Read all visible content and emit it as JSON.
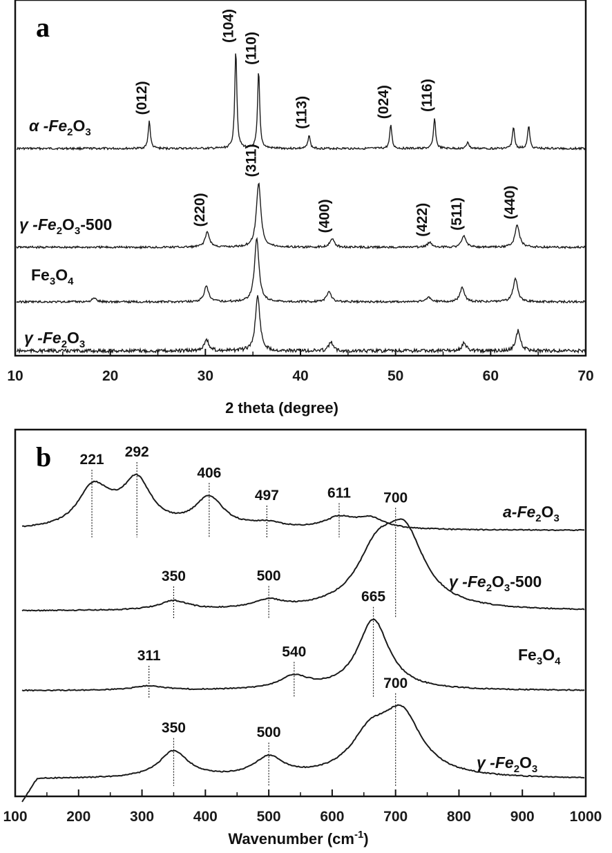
{
  "chart_data": [
    {
      "type": "line",
      "panel_label": "a",
      "xlabel": "2 theta (degree)",
      "ylabel": "",
      "xlim": [
        10,
        70
      ],
      "xticks": [
        10,
        20,
        30,
        40,
        50,
        60,
        70
      ],
      "yticks_shown": false,
      "grid": false,
      "line_color": "#1a1a1a",
      "series": [
        {
          "label_parts": [
            "α -Fe",
            "2",
            "O",
            "3"
          ],
          "peaks": [
            {
              "x": 24.1,
              "h": 0.28
            },
            {
              "x": 33.2,
              "h": 1.0
            },
            {
              "x": 35.6,
              "h": 0.78
            },
            {
              "x": 40.9,
              "h": 0.14
            },
            {
              "x": 49.5,
              "h": 0.24
            },
            {
              "x": 54.1,
              "h": 0.31
            },
            {
              "x": 57.6,
              "h": 0.07
            },
            {
              "x": 62.4,
              "h": 0.22
            },
            {
              "x": 64.0,
              "h": 0.23
            }
          ],
          "annotations": [
            {
              "x": 24.1,
              "label": "(012)"
            },
            {
              "x": 33.2,
              "label": "(104)"
            },
            {
              "x": 35.6,
              "label": "(110)"
            },
            {
              "x": 40.9,
              "label": "(113)"
            },
            {
              "x": 49.5,
              "label": "(024)"
            },
            {
              "x": 54.1,
              "label": "(116)"
            }
          ]
        },
        {
          "label_parts": [
            "γ -Fe",
            "2",
            "O",
            "3",
            "-500"
          ],
          "peaks": [
            {
              "x": 30.2,
              "h": 0.12
            },
            {
              "x": 35.6,
              "h": 0.52
            },
            {
              "x": 43.3,
              "h": 0.07
            },
            {
              "x": 53.6,
              "h": 0.04
            },
            {
              "x": 57.2,
              "h": 0.09
            },
            {
              "x": 62.8,
              "h": 0.18
            }
          ],
          "annotations": [
            {
              "x": 30.2,
              "label": "(220)"
            },
            {
              "x": 35.6,
              "label": "(311)"
            },
            {
              "x": 43.3,
              "label": "(400)"
            },
            {
              "x": 53.6,
              "label": "(422)"
            },
            {
              "x": 57.2,
              "label": "(511)"
            },
            {
              "x": 62.8,
              "label": "(440)"
            }
          ]
        },
        {
          "label_parts": [
            "Fe",
            "3",
            "O",
            "4"
          ],
          "peaks": [
            {
              "x": 18.3,
              "h": 0.03
            },
            {
              "x": 30.1,
              "h": 0.13
            },
            {
              "x": 35.4,
              "h": 0.54
            },
            {
              "x": 43.0,
              "h": 0.09
            },
            {
              "x": 53.5,
              "h": 0.04
            },
            {
              "x": 57.0,
              "h": 0.12
            },
            {
              "x": 62.6,
              "h": 0.2
            }
          ],
          "annotations": []
        },
        {
          "label_parts": [
            "γ -Fe",
            "2",
            "O",
            "3"
          ],
          "peaks": [
            {
              "x": 30.1,
              "h": 0.11
            },
            {
              "x": 35.5,
              "h": 0.52
            },
            {
              "x": 43.2,
              "h": 0.08
            },
            {
              "x": 57.2,
              "h": 0.07
            },
            {
              "x": 62.9,
              "h": 0.19
            }
          ],
          "annotations": []
        }
      ]
    },
    {
      "type": "line",
      "panel_label": "b",
      "xlabel_parts": [
        "Wavenumber (cm",
        "-1",
        ")"
      ],
      "ylabel": "",
      "xlim": [
        100,
        1000
      ],
      "xticks": [
        100,
        200,
        300,
        400,
        500,
        600,
        700,
        800,
        900,
        1000
      ],
      "yticks_shown": false,
      "grid": false,
      "line_color": "#1a1a1a",
      "series": [
        {
          "label_parts": [
            "a-Fe",
            "2",
            "O",
            "3"
          ],
          "bands": [
            {
              "x": 221,
              "h": 0.2
            },
            {
              "x": 245,
              "h": 0.05
            },
            {
              "x": 292,
              "h": 0.26
            },
            {
              "x": 406,
              "h": 0.17
            },
            {
              "x": 497,
              "h": 0.03
            },
            {
              "x": 611,
              "h": 0.06
            },
            {
              "x": 660,
              "h": 0.06
            }
          ],
          "annotations": [
            {
              "x": 221,
              "label": "221"
            },
            {
              "x": 292,
              "label": "292"
            },
            {
              "x": 406,
              "label": "406"
            },
            {
              "x": 497,
              "label": "497"
            },
            {
              "x": 611,
              "label": "611"
            }
          ]
        },
        {
          "label_parts": [
            "γ -Fe",
            "2",
            "O",
            "3",
            "-500"
          ],
          "bands": [
            {
              "x": 350,
              "h": 0.08
            },
            {
              "x": 500,
              "h": 0.07
            },
            {
              "x": 670,
              "h": 0.45
            },
            {
              "x": 715,
              "h": 0.6
            }
          ],
          "annotations": [
            {
              "x": 350,
              "label": "350"
            },
            {
              "x": 500,
              "label": "500"
            },
            {
              "x": 700,
              "label": "700"
            }
          ]
        },
        {
          "label_parts": [
            "Fe",
            "3",
            "O",
            "4"
          ],
          "bands": [
            {
              "x": 311,
              "h": 0.05
            },
            {
              "x": 540,
              "h": 0.14
            },
            {
              "x": 665,
              "h": 0.8
            }
          ],
          "annotations": [
            {
              "x": 311,
              "label": "311"
            },
            {
              "x": 540,
              "label": "540"
            },
            {
              "x": 665,
              "label": "665"
            }
          ]
        },
        {
          "label_parts": [
            "γ -Fe",
            "2",
            "O",
            "3"
          ],
          "bands": [
            {
              "x": 350,
              "h": 0.25
            },
            {
              "x": 500,
              "h": 0.18
            },
            {
              "x": 660,
              "h": 0.35
            },
            {
              "x": 710,
              "h": 0.55
            }
          ],
          "annotations": [
            {
              "x": 350,
              "label": "350"
            },
            {
              "x": 500,
              "label": "500"
            },
            {
              "x": 700,
              "label": "700"
            }
          ]
        }
      ]
    }
  ]
}
